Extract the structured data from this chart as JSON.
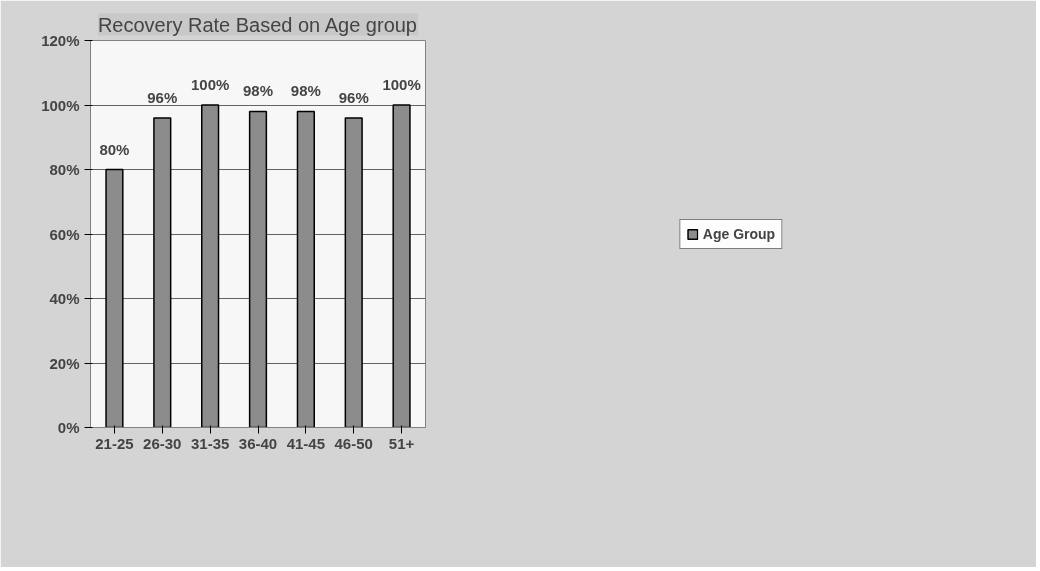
{
  "chart_data": {
    "type": "bar",
    "title": "Recovery Rate Based on Age group",
    "categories": [
      "21-25",
      "26-30",
      "31-35",
      "36-40",
      "41-45",
      "46-50",
      "51+"
    ],
    "series": [
      {
        "name": "Age Group",
        "color": "#8c8c8c",
        "values": [
          80,
          96,
          100,
          98,
          98,
          96,
          100
        ],
        "value_labels": [
          "80%",
          "96%",
          "100%",
          "98%",
          "98%",
          "96%",
          "100%"
        ]
      }
    ],
    "ylim": [
      0,
      120
    ],
    "yticks": [
      {
        "value": 0,
        "label": "0%"
      },
      {
        "value": 20,
        "label": "20%"
      },
      {
        "value": 40,
        "label": "40%"
      },
      {
        "value": 60,
        "label": "60%"
      },
      {
        "value": 80,
        "label": "80%"
      },
      {
        "value": 100,
        "label": "100%"
      },
      {
        "value": 120,
        "label": "120%"
      }
    ],
    "grid": "y",
    "legend": "right"
  }
}
